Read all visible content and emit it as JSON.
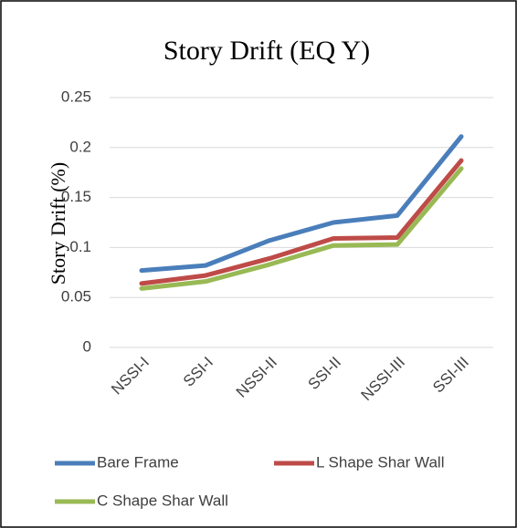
{
  "chart_data": {
    "type": "line",
    "title": "Story Drift (EQ Y)",
    "y_label": "Story Drift (%)",
    "categories": [
      "NSSI-I",
      "SSI-I",
      "NSSI-II",
      "SSI-II",
      "NSSI-III",
      "SSI-III"
    ],
    "series": [
      {
        "name": "Bare Frame",
        "color": "#4a7ebb",
        "values": [
          0.077,
          0.082,
          0.107,
          0.125,
          0.132,
          0.211
        ]
      },
      {
        "name": "L Shape Shar Wall",
        "color": "#be4b48",
        "values": [
          0.064,
          0.072,
          0.089,
          0.109,
          0.11,
          0.187
        ]
      },
      {
        "name": "C Shape Shar Wall",
        "color": "#98b954",
        "values": [
          0.059,
          0.066,
          0.083,
          0.102,
          0.103,
          0.179
        ]
      }
    ],
    "ylim": [
      0,
      0.25
    ],
    "yticks": [
      0,
      0.05,
      0.1,
      0.15,
      0.2,
      0.25
    ],
    "grid": true
  }
}
